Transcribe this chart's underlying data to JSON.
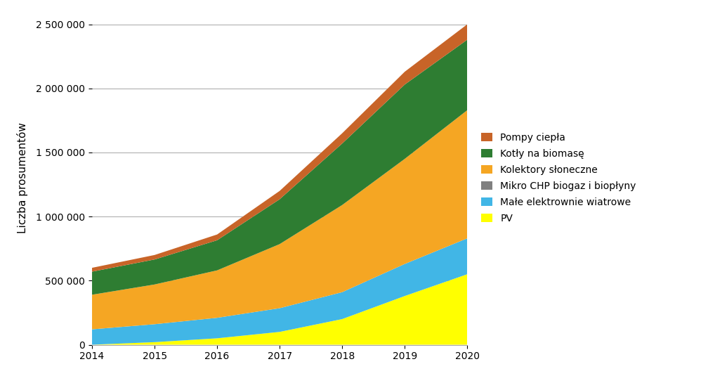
{
  "years": [
    2014,
    2015,
    2016,
    2017,
    2018,
    2019,
    2020
  ],
  "series": {
    "PV": [
      0,
      20000,
      50000,
      100000,
      200000,
      380000,
      550000
    ],
    "Male_elektrownie": [
      120000,
      140000,
      160000,
      185000,
      210000,
      250000,
      280000
    ],
    "Mikro_CHP": [
      0,
      0,
      0,
      0,
      0,
      0,
      0
    ],
    "Kolektory": [
      270000,
      310000,
      370000,
      500000,
      680000,
      820000,
      1000000
    ],
    "Kotly_biomasa": [
      180000,
      195000,
      235000,
      350000,
      480000,
      580000,
      550000
    ],
    "Pompy_ciepla": [
      30000,
      35000,
      45000,
      65000,
      80000,
      100000,
      120000
    ]
  },
  "colors": {
    "PV": "#ffff00",
    "Male_elektrownie": "#41b6e6",
    "Mikro_CHP": "#808080",
    "Kolektory": "#f5a623",
    "Kotly_biomasa": "#2e7d32",
    "Pompy_ciepla": "#c86428"
  },
  "labels": {
    "PV": "PV",
    "Male_elektrownie": "Małe elektrownie wiatrowe",
    "Mikro_CHP": "Mikro CHP biogaz i biopłyny",
    "Kolektory": "Kolektory słoneczne",
    "Kotly_biomasa": "Kotły na biomasę",
    "Pompy_ciepla": "Pompy ciepła"
  },
  "ylabel": "Liczba prosumentów",
  "ylim": [
    0,
    2600000
  ],
  "yticks": [
    0,
    500000,
    1000000,
    1500000,
    2000000,
    2500000
  ],
  "xlim": [
    2014,
    2020
  ],
  "background_color": "#ffffff",
  "grid_color": "#b0b0b0"
}
